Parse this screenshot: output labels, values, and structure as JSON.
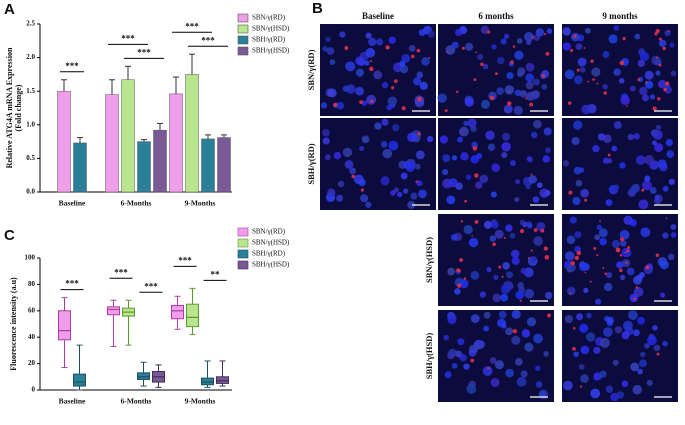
{
  "chart_data": [
    {
      "type": "bar",
      "panel_label": "A",
      "ylabel": [
        "Relative ATG4A mRNA Expression",
        "(Fold change)"
      ],
      "categories": [
        "Baseline",
        "6-Months",
        "9-Months"
      ],
      "ylim": [
        0,
        2.5
      ],
      "yticks": [
        {
          "value": 0,
          "label": "0.0"
        },
        0.5,
        {
          "value": 1,
          "label": "1.0"
        },
        1.5,
        {
          "value": 2,
          "label": "2.0"
        },
        2.5
      ],
      "series": [
        {
          "name": "SBN/γ(RD)",
          "color": "#ef9fe9",
          "values": [
            1.5,
            1.45,
            1.46
          ],
          "errors": [
            0.17,
            0.22,
            0.25
          ]
        },
        {
          "name": "SBN/γ(HSD)",
          "color": "#b9e58e",
          "values": [
            null,
            1.67,
            1.75
          ],
          "errors": [
            null,
            0.2,
            0.3
          ]
        },
        {
          "name": "SBH/γ(RD)",
          "color": "#2b7f99",
          "values": [
            0.73,
            0.75,
            0.79
          ],
          "errors": [
            0.08,
            0.03,
            0.06
          ]
        },
        {
          "name": "SBH/γ(HSD)",
          "color": "#7a5a96",
          "values": [
            null,
            0.92,
            0.81
          ],
          "errors": [
            null,
            0.1,
            0.04
          ]
        }
      ],
      "annotations": [
        {
          "text": "***",
          "category": 0,
          "series": [
            0,
            2
          ]
        },
        {
          "text": "***",
          "category": 1,
          "series": [
            0,
            2
          ]
        },
        {
          "text": "***",
          "category": 1,
          "series": [
            1,
            3
          ]
        },
        {
          "text": "***",
          "category": 2,
          "series": [
            0,
            2
          ]
        },
        {
          "text": "***",
          "category": 2,
          "series": [
            1,
            3
          ]
        }
      ]
    },
    {
      "type": "box",
      "panel_label": "C",
      "ylabel": [
        "Fluorescence intensity (a.u)"
      ],
      "categories": [
        "Baseline",
        "6-Months",
        "9-Months"
      ],
      "ylim": [
        0,
        100
      ],
      "yticks": [
        0,
        20,
        40,
        60,
        80,
        100
      ],
      "series": [
        {
          "name": "SBN/γ(RD)",
          "color": "#ef9fe9",
          "edge": "#b03aa8",
          "whislo": [
            17,
            33,
            46
          ],
          "q1": [
            38,
            57,
            54
          ],
          "median": [
            45,
            61,
            60
          ],
          "q3": [
            60,
            63,
            64
          ],
          "whishi": [
            70,
            68,
            71
          ]
        },
        {
          "name": "SBN/γ(HSD)",
          "color": "#b9e58e",
          "edge": "#5f9a2c",
          "whislo": [
            null,
            34,
            42
          ],
          "q1": [
            null,
            56,
            48
          ],
          "median": [
            null,
            59,
            55
          ],
          "q3": [
            null,
            62,
            65
          ],
          "whishi": [
            null,
            68,
            77
          ]
        },
        {
          "name": "SBH/γ(RD)",
          "color": "#2b7f99",
          "edge": "#1b4f60",
          "whislo": [
            0,
            3,
            2
          ],
          "q1": [
            3,
            8,
            4
          ],
          "median": [
            6,
            10,
            6
          ],
          "q3": [
            12,
            13,
            9
          ],
          "whishi": [
            34,
            21,
            22
          ]
        },
        {
          "name": "SBH/γ(HSD)",
          "color": "#7a5a96",
          "edge": "#3f2b55",
          "whislo": [
            null,
            2,
            3
          ],
          "q1": [
            null,
            6,
            5
          ],
          "median": [
            null,
            10,
            7
          ],
          "q3": [
            null,
            14,
            10
          ],
          "whishi": [
            null,
            19,
            22
          ]
        }
      ],
      "annotations": [
        {
          "text": "***",
          "category": 0,
          "series": [
            0,
            2
          ]
        },
        {
          "text": "***",
          "category": 1,
          "series": [
            0,
            1
          ]
        },
        {
          "text": "***",
          "category": 1,
          "series": [
            2,
            3
          ]
        },
        {
          "text": "***",
          "category": 2,
          "series": [
            0,
            1
          ]
        },
        {
          "text": "**",
          "category": 2,
          "series": [
            2,
            3
          ]
        }
      ]
    }
  ],
  "panel_b": {
    "label": "B",
    "columns": [
      "Baseline",
      "6 months",
      "9 months"
    ],
    "rows": [
      {
        "label": "SBN/γ(RD)",
        "columns": [
          0,
          1,
          2
        ]
      },
      {
        "label": "SBH/γ(RD)",
        "columns": [
          0,
          1,
          2
        ]
      },
      {
        "label": "SBN/γ(HSD)",
        "columns": [
          1,
          2
        ]
      },
      {
        "label": "SBH/γ(HSD)",
        "columns": [
          1,
          2
        ]
      }
    ]
  }
}
